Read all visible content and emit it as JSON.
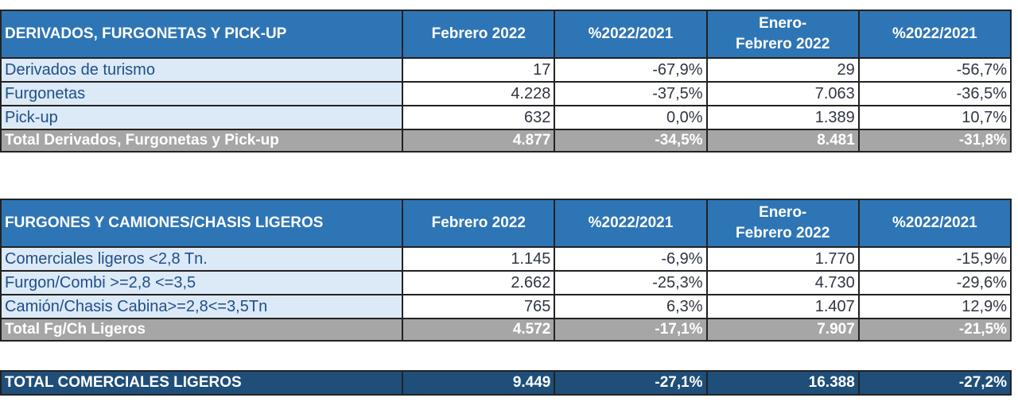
{
  "table1": {
    "headers": [
      "DERIVADOS, FURGONETAS Y PICK-UP",
      "Febrero 2022",
      "%2022/2021",
      "Enero-Febrero 2022",
      "%2022/2021"
    ],
    "rows": [
      [
        "Derivados de turismo",
        "17",
        "-67,9%",
        "29",
        "-56,7%"
      ],
      [
        "Furgonetas",
        "4.228",
        "-37,5%",
        "7.063",
        "-36,5%"
      ],
      [
        "Pick-up",
        "632",
        "0,0%",
        "1.389",
        "10,7%"
      ]
    ],
    "total": [
      "Total Derivados, Furgonetas y Pick-up",
      "4.877",
      "-34,5%",
      "8.481",
      "-31,8%"
    ]
  },
  "table2": {
    "headers": [
      "FURGONES Y CAMIONES/CHASIS LIGEROS",
      "Febrero 2022",
      "%2022/2021",
      "Enero-Febrero 2022",
      "%2022/2021"
    ],
    "rows": [
      [
        "Comerciales ligeros <2,8 Tn.",
        "1.145",
        "-6,9%",
        "1.770",
        "-15,9%"
      ],
      [
        "Furgon/Combi >=2,8 <=3,5",
        "2.662",
        "-25,3%",
        "4.730",
        "-29,6%"
      ],
      [
        "Camión/Chasis Cabina>=2,8<=3,5Tn",
        "765",
        "6,3%",
        "1.407",
        "12,9%"
      ]
    ],
    "total": [
      "Total Fg/Ch Ligeros",
      "4.572",
      "-17,1%",
      "7.907",
      "-21,5%"
    ]
  },
  "grand_total": [
    "TOTAL COMERCIALES LIGEROS",
    "9.449",
    "-27,1%",
    "16.388",
    "-27,2%"
  ]
}
